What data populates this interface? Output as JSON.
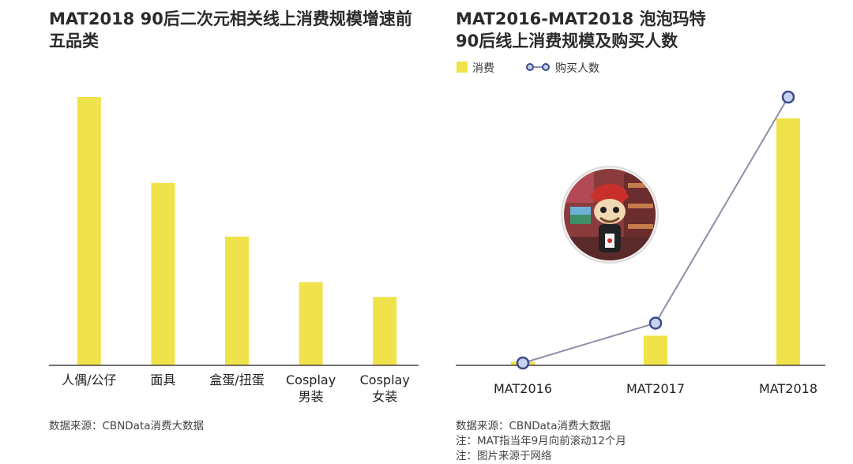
{
  "charts": {
    "left": {
      "title": "MAT2018 90后二次元相关线上消费规模增速前五品类",
      "source": "数据来源：CBNData消费大数据"
    },
    "right": {
      "title_line1": "MAT2016-MAT2018 泡泡玛特",
      "title_line2": "90后线上消费规模及购买人数",
      "source_lines": [
        "数据来源：CBNData消费大数据",
        "注：MAT指当年9月向前滚动12个月",
        "注：图片来源于网络"
      ],
      "image_alt": "泡泡玛特门店图片"
    }
  },
  "chart_data": [
    {
      "type": "bar",
      "title": "MAT2018 90后二次元相关线上消费规模增速前五品类",
      "categories": [
        "人偶/公仔",
        "面具",
        "盒蛋/扭蛋",
        "Cosplay男装",
        "Cosplay女装"
      ],
      "tick_labels": [
        [
          "人偶/公仔"
        ],
        [
          "面具"
        ],
        [
          "盒蛋/扭蛋"
        ],
        [
          "Cosplay",
          "男装"
        ],
        [
          "Cosplay",
          "女装"
        ]
      ],
      "values": [
        100,
        68,
        48,
        31,
        25.5
      ],
      "ylim": [
        0,
        100
      ],
      "axes_visible": false,
      "grid": false,
      "bar_color": "#f0e24a"
    },
    {
      "type": "bar",
      "title": "MAT2016-MAT2018 泡泡玛特 90后线上消费规模及购买人数",
      "categories": [
        "MAT2016",
        "MAT2017",
        "MAT2018"
      ],
      "series": [
        {
          "name": "消费",
          "type": "bar",
          "values": [
            1.5,
            12,
            100
          ],
          "color": "#f0e24a"
        },
        {
          "name": "购买人数",
          "type": "line",
          "values": [
            0,
            15,
            100
          ],
          "color": "#8d8fa8",
          "marker_edge": "#3d4a8a",
          "marker_fill": "#c7d3ee"
        }
      ],
      "ylim": [
        0,
        100
      ],
      "legend": "top-left",
      "axes_visible": false,
      "grid": false
    }
  ]
}
